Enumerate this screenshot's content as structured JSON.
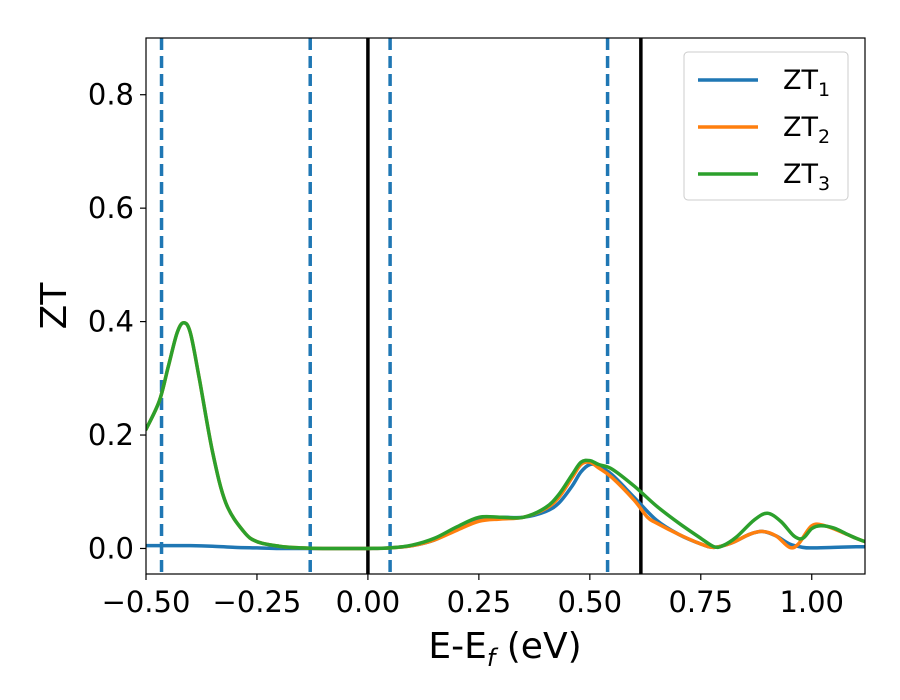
{
  "chart_data": {
    "type": "line",
    "title": "",
    "xlabel_main": "E-E",
    "xlabel_sub": "f",
    "xlabel_unit": " (eV)",
    "ylabel": "ZT",
    "xlim": [
      -0.5,
      1.12
    ],
    "ylim": [
      -0.045,
      0.9
    ],
    "xticks": [
      -0.5,
      -0.25,
      0.0,
      0.25,
      0.5,
      0.75,
      1.0
    ],
    "xtick_labels": [
      "−0.50",
      "−0.25",
      "0.00",
      "0.25",
      "0.50",
      "0.75",
      "1.00"
    ],
    "yticks": [
      0.0,
      0.2,
      0.4,
      0.6,
      0.8
    ],
    "ytick_labels": [
      "0.0",
      "0.2",
      "0.4",
      "0.6",
      "0.8"
    ],
    "legend_position": "top-right",
    "vlines_dashed": {
      "color": "#1f77b4",
      "x": [
        -0.465,
        -0.13,
        0.05,
        0.54
      ]
    },
    "vlines_solid": {
      "color": "#000000",
      "x": [
        0.0,
        0.615
      ]
    },
    "series": [
      {
        "name": "ZT",
        "sub": "1",
        "color": "#1f77b4",
        "points": [
          [
            -0.5,
            0.005
          ],
          [
            -0.45,
            0.005
          ],
          [
            -0.4,
            0.005
          ],
          [
            -0.35,
            0.004
          ],
          [
            -0.3,
            0.002
          ],
          [
            -0.25,
            0.001
          ],
          [
            -0.2,
            0.0
          ],
          [
            -0.15,
            0.0
          ],
          [
            -0.1,
            0.0
          ],
          [
            -0.05,
            0.0
          ],
          [
            0.0,
            0.0
          ],
          [
            0.05,
            0.001
          ],
          [
            0.1,
            0.005
          ],
          [
            0.15,
            0.015
          ],
          [
            0.2,
            0.035
          ],
          [
            0.25,
            0.052
          ],
          [
            0.3,
            0.055
          ],
          [
            0.35,
            0.055
          ],
          [
            0.4,
            0.065
          ],
          [
            0.43,
            0.08
          ],
          [
            0.46,
            0.11
          ],
          [
            0.48,
            0.135
          ],
          [
            0.5,
            0.148
          ],
          [
            0.52,
            0.145
          ],
          [
            0.55,
            0.13
          ],
          [
            0.6,
            0.09
          ],
          [
            0.65,
            0.05
          ],
          [
            0.7,
            0.025
          ],
          [
            0.75,
            0.008
          ],
          [
            0.78,
            0.002
          ],
          [
            0.82,
            0.01
          ],
          [
            0.86,
            0.025
          ],
          [
            0.89,
            0.03
          ],
          [
            0.92,
            0.022
          ],
          [
            0.95,
            0.008
          ],
          [
            0.98,
            0.002
          ],
          [
            1.0,
            0.001
          ],
          [
            1.05,
            0.002
          ],
          [
            1.1,
            0.003
          ],
          [
            1.12,
            0.003
          ]
        ]
      },
      {
        "name": "ZT",
        "sub": "2",
        "color": "#ff7f0e",
        "points": [
          [
            -0.5,
            0.21
          ],
          [
            -0.47,
            0.26
          ],
          [
            -0.45,
            0.32
          ],
          [
            -0.43,
            0.38
          ],
          [
            -0.415,
            0.398
          ],
          [
            -0.4,
            0.38
          ],
          [
            -0.38,
            0.3
          ],
          [
            -0.35,
            0.17
          ],
          [
            -0.32,
            0.08
          ],
          [
            -0.28,
            0.03
          ],
          [
            -0.25,
            0.012
          ],
          [
            -0.2,
            0.004
          ],
          [
            -0.15,
            0.001
          ],
          [
            -0.1,
            0.0
          ],
          [
            -0.05,
            0.0
          ],
          [
            0.0,
            0.0
          ],
          [
            0.05,
            0.001
          ],
          [
            0.1,
            0.005
          ],
          [
            0.15,
            0.015
          ],
          [
            0.2,
            0.032
          ],
          [
            0.25,
            0.048
          ],
          [
            0.3,
            0.052
          ],
          [
            0.35,
            0.055
          ],
          [
            0.4,
            0.07
          ],
          [
            0.43,
            0.09
          ],
          [
            0.46,
            0.125
          ],
          [
            0.48,
            0.148
          ],
          [
            0.5,
            0.152
          ],
          [
            0.52,
            0.142
          ],
          [
            0.55,
            0.125
          ],
          [
            0.6,
            0.085
          ],
          [
            0.63,
            0.055
          ],
          [
            0.65,
            0.045
          ],
          [
            0.7,
            0.025
          ],
          [
            0.75,
            0.008
          ],
          [
            0.78,
            0.002
          ],
          [
            0.82,
            0.01
          ],
          [
            0.86,
            0.025
          ],
          [
            0.89,
            0.03
          ],
          [
            0.92,
            0.022
          ],
          [
            0.95,
            0.002
          ],
          [
            0.97,
            0.008
          ],
          [
            1.0,
            0.04
          ],
          [
            1.03,
            0.04
          ],
          [
            1.07,
            0.028
          ],
          [
            1.1,
            0.018
          ],
          [
            1.12,
            0.012
          ]
        ]
      },
      {
        "name": "ZT",
        "sub": "3",
        "color": "#2ca02c",
        "points": [
          [
            -0.5,
            0.21
          ],
          [
            -0.47,
            0.26
          ],
          [
            -0.45,
            0.32
          ],
          [
            -0.43,
            0.38
          ],
          [
            -0.415,
            0.398
          ],
          [
            -0.4,
            0.38
          ],
          [
            -0.38,
            0.3
          ],
          [
            -0.35,
            0.17
          ],
          [
            -0.32,
            0.08
          ],
          [
            -0.28,
            0.03
          ],
          [
            -0.25,
            0.012
          ],
          [
            -0.2,
            0.004
          ],
          [
            -0.15,
            0.001
          ],
          [
            -0.1,
            0.0
          ],
          [
            -0.05,
            0.0
          ],
          [
            0.0,
            0.0
          ],
          [
            0.05,
            0.001
          ],
          [
            0.1,
            0.006
          ],
          [
            0.15,
            0.018
          ],
          [
            0.2,
            0.038
          ],
          [
            0.25,
            0.055
          ],
          [
            0.3,
            0.055
          ],
          [
            0.35,
            0.055
          ],
          [
            0.4,
            0.072
          ],
          [
            0.43,
            0.095
          ],
          [
            0.46,
            0.13
          ],
          [
            0.48,
            0.152
          ],
          [
            0.5,
            0.155
          ],
          [
            0.52,
            0.148
          ],
          [
            0.55,
            0.14
          ],
          [
            0.6,
            0.11
          ],
          [
            0.65,
            0.075
          ],
          [
            0.7,
            0.045
          ],
          [
            0.75,
            0.018
          ],
          [
            0.78,
            0.003
          ],
          [
            0.8,
            0.005
          ],
          [
            0.83,
            0.02
          ],
          [
            0.87,
            0.05
          ],
          [
            0.9,
            0.062
          ],
          [
            0.93,
            0.048
          ],
          [
            0.96,
            0.022
          ],
          [
            0.98,
            0.018
          ],
          [
            1.0,
            0.035
          ],
          [
            1.02,
            0.04
          ],
          [
            1.05,
            0.036
          ],
          [
            1.08,
            0.025
          ],
          [
            1.1,
            0.018
          ],
          [
            1.12,
            0.012
          ]
        ]
      }
    ]
  }
}
